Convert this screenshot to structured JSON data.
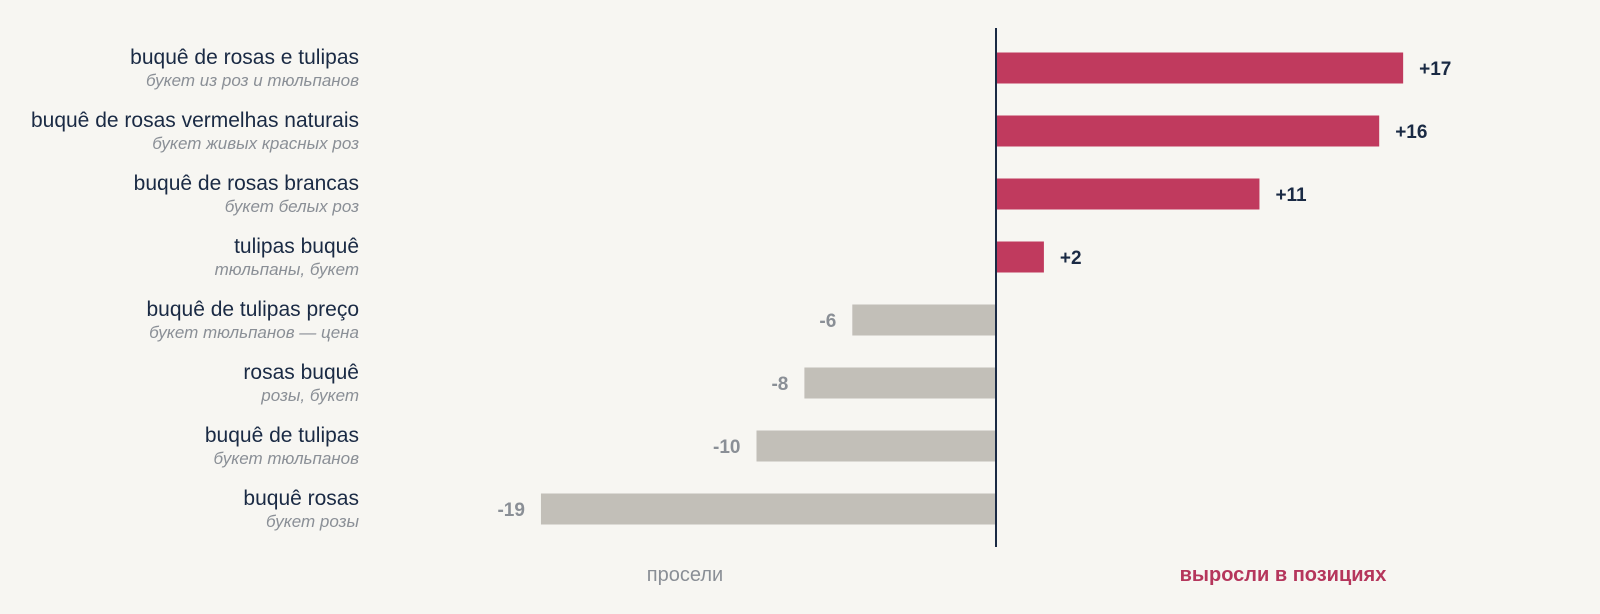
{
  "chart_data": {
    "type": "bar",
    "orientation": "horizontal",
    "categories": [
      {
        "label": "buquê de rosas e tulipas",
        "sublabel": "букет из роз и тюльпанов"
      },
      {
        "label": "buquê de rosas vermelhas naturais",
        "sublabel": "букет живых красных роз"
      },
      {
        "label": "buquê de rosas brancas",
        "sublabel": "букет белых роз"
      },
      {
        "label": "tulipas buquê",
        "sublabel": "тюльпаны, букет"
      },
      {
        "label": "buquê de tulipas preço",
        "sublabel": "букет тюльпанов — цена"
      },
      {
        "label": "rosas buquê",
        "sublabel": "розы, букет"
      },
      {
        "label": "buquê de tulipas",
        "sublabel": "букет тюльпанов"
      },
      {
        "label": "buquê rosas",
        "sublabel": "букет розы"
      }
    ],
    "values": [
      17,
      16,
      11,
      2,
      -6,
      -8,
      -10,
      -19
    ],
    "value_labels": [
      "+17",
      "+16",
      "+11",
      "+2",
      "-6",
      "-8",
      "-10",
      "-19"
    ],
    "xlim": [
      -19,
      17
    ],
    "legend": {
      "negative": "просели",
      "positive": "выросли в позициях"
    },
    "colors": {
      "positive": "#c03a5e",
      "negative": "#c2bfb8",
      "axis": "#1a2a44",
      "label": "#1a2a44",
      "sublabel": "#8a8f96",
      "legend_positive": "#b5365c",
      "legend_negative": "#8a8f96"
    }
  }
}
